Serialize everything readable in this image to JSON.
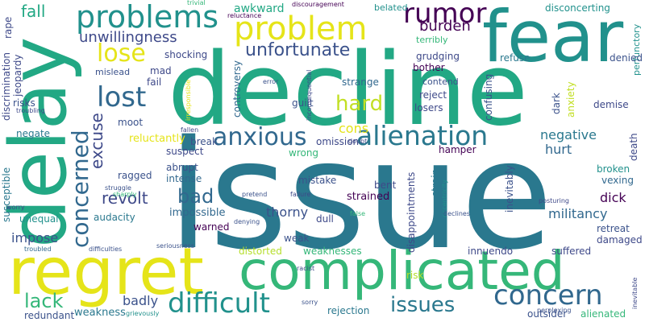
{
  "cloud": {
    "words": [
      {
        "text": "issue",
        "color": "#2a788e"
      },
      {
        "text": "decline",
        "color": "#22a884"
      },
      {
        "text": "fear",
        "color": "#21918c"
      },
      {
        "text": "delay",
        "color": "#22a884"
      },
      {
        "text": "regret",
        "color": "#e5e419"
      },
      {
        "text": "complicated",
        "color": "#35b779"
      },
      {
        "text": "problems",
        "color": "#21918c"
      },
      {
        "text": "problem",
        "color": "#e5e419"
      },
      {
        "text": "rumor",
        "color": "#440154"
      },
      {
        "text": "concern",
        "color": "#31688e"
      },
      {
        "text": "difficult",
        "color": "#21918c"
      },
      {
        "text": "alienation",
        "color": "#2a788e"
      },
      {
        "text": "concerned",
        "color": "#31688e"
      },
      {
        "text": "lost",
        "color": "#31688e"
      },
      {
        "text": "anxious",
        "color": "#31688e"
      },
      {
        "text": "hard",
        "color": "#c2df23"
      },
      {
        "text": "lose",
        "color": "#e5e419"
      },
      {
        "text": "unfortunate",
        "color": "#3b528b"
      },
      {
        "text": "unwillingness",
        "color": "#3e4989"
      },
      {
        "text": "issues",
        "color": "#2a788e"
      },
      {
        "text": "lack",
        "color": "#35b779"
      },
      {
        "text": "bad",
        "color": "#31688e"
      },
      {
        "text": "excuse",
        "color": "#3e4989"
      },
      {
        "text": "fall",
        "color": "#22a884"
      },
      {
        "text": "revolt",
        "color": "#3e4989"
      },
      {
        "text": "burden",
        "color": "#440154"
      },
      {
        "text": "cons",
        "color": "#e5e419"
      },
      {
        "text": "negative",
        "color": "#2a788e"
      },
      {
        "text": "hurt",
        "color": "#31688e"
      },
      {
        "text": "thorny",
        "color": "#3b528b"
      },
      {
        "text": "militancy",
        "color": "#31688e"
      },
      {
        "text": "dick",
        "color": "#440154"
      },
      {
        "text": "impose",
        "color": "#3b528b"
      },
      {
        "text": "awkward",
        "color": "#22a884"
      },
      {
        "text": "badly",
        "color": "#3b528b"
      },
      {
        "text": "weakness",
        "color": "#2a788e"
      },
      {
        "text": "reluctantly",
        "color": "#e5e419"
      },
      {
        "text": "impossible",
        "color": "#31688e"
      },
      {
        "text": "strained",
        "color": "#440154"
      },
      {
        "text": "disconcerting",
        "color": "#21918c"
      },
      {
        "text": "perfunctory",
        "color": "#21918c"
      },
      {
        "text": "shocking",
        "color": "#3e4989"
      },
      {
        "text": "refuse",
        "color": "#2a788e"
      },
      {
        "text": "denied",
        "color": "#3b528b"
      },
      {
        "text": "grudging",
        "color": "#3e4989"
      },
      {
        "text": "bother",
        "color": "#440154"
      },
      {
        "text": "terribly",
        "color": "#35b779"
      },
      {
        "text": "belated",
        "color": "#21918c"
      },
      {
        "text": "mislead",
        "color": "#3b528b"
      },
      {
        "text": "mad",
        "color": "#3e4989"
      },
      {
        "text": "fail",
        "color": "#3e4989"
      },
      {
        "text": "moot",
        "color": "#3b528b"
      },
      {
        "text": "strange",
        "color": "#31688e"
      },
      {
        "text": "contend",
        "color": "#3b528b"
      },
      {
        "text": "reject",
        "color": "#3e4989"
      },
      {
        "text": "losers",
        "color": "#3e4989"
      },
      {
        "text": "confusing",
        "color": "#3b528b"
      },
      {
        "text": "dark",
        "color": "#3b528b"
      },
      {
        "text": "anxiety",
        "color": "#c2df23"
      },
      {
        "text": "demise",
        "color": "#3e4989"
      },
      {
        "text": "guilt",
        "color": "#3b528b"
      },
      {
        "text": "controversy",
        "color": "#31688e"
      },
      {
        "text": "risks",
        "color": "#3b528b"
      },
      {
        "text": "negate",
        "color": "#2a788e"
      },
      {
        "text": "suspect",
        "color": "#3e4989"
      },
      {
        "text": "break",
        "color": "#3b528b"
      },
      {
        "text": "omission",
        "color": "#3e4989"
      },
      {
        "text": "wrong",
        "color": "#35b779"
      },
      {
        "text": "hamper",
        "color": "#440154"
      },
      {
        "text": "death",
        "color": "#3e4989"
      },
      {
        "text": "abrupt",
        "color": "#3b528b"
      },
      {
        "text": "intense",
        "color": "#31688e"
      },
      {
        "text": "ragged",
        "color": "#3b528b"
      },
      {
        "text": "mistake",
        "color": "#3b528b"
      },
      {
        "text": "bent",
        "color": "#3e4989"
      },
      {
        "text": "broken",
        "color": "#21918c"
      },
      {
        "text": "vexing",
        "color": "#31688e"
      },
      {
        "text": "inevitably",
        "color": "#3b528b"
      },
      {
        "text": "strain",
        "color": "#2a788e"
      },
      {
        "text": "disappointments",
        "color": "#3e4989"
      },
      {
        "text": "dull",
        "color": "#3e4989"
      },
      {
        "text": "weak",
        "color": "#3b528b"
      },
      {
        "text": "warned",
        "color": "#440154"
      },
      {
        "text": "audacity",
        "color": "#2a788e"
      },
      {
        "text": "unequal",
        "color": "#21918c"
      },
      {
        "text": "susceptible",
        "color": "#2a788e"
      },
      {
        "text": "distorted",
        "color": "#b5de2b"
      },
      {
        "text": "weaknesses",
        "color": "#35b779"
      },
      {
        "text": "innuendo",
        "color": "#3e4989"
      },
      {
        "text": "suffered",
        "color": "#3e4989"
      },
      {
        "text": "retreat",
        "color": "#3b528b"
      },
      {
        "text": "damaged",
        "color": "#3e4989"
      },
      {
        "text": "risk",
        "color": "#b5de2b"
      },
      {
        "text": "rejection",
        "color": "#2a788e"
      },
      {
        "text": "outsider",
        "color": "#3b528b"
      },
      {
        "text": "alienated",
        "color": "#35b779"
      },
      {
        "text": "redundant",
        "color": "#3b528b"
      },
      {
        "text": "discrimination",
        "color": "#3e4989"
      },
      {
        "text": "jeopardy",
        "color": "#3e4989"
      },
      {
        "text": "rape",
        "color": "#3e4989"
      },
      {
        "text": "troubling",
        "color": "#3e4989"
      },
      {
        "text": "trivial",
        "color": "#35b779"
      },
      {
        "text": "reluctance",
        "color": "#440154"
      },
      {
        "text": "discouragement",
        "color": "#440154"
      },
      {
        "text": "error",
        "color": "#3b528b"
      },
      {
        "text": "inconsequential",
        "color": "#3e4989"
      },
      {
        "text": "irresponsible",
        "color": "#e5e419"
      },
      {
        "text": "fallen",
        "color": "#3e4989"
      },
      {
        "text": "doubt",
        "color": "#3e4989"
      },
      {
        "text": "struggle",
        "color": "#3b528b"
      },
      {
        "text": "sharply",
        "color": "#35b779"
      },
      {
        "text": "worry",
        "color": "#3e4989"
      },
      {
        "text": "pretend",
        "color": "#3b528b"
      },
      {
        "text": "failure",
        "color": "#3e4989"
      },
      {
        "text": "eccentricity",
        "color": "#21918c"
      },
      {
        "text": "posturing",
        "color": "#3e4989"
      },
      {
        "text": "denying",
        "color": "#3b528b"
      },
      {
        "text": "false",
        "color": "#35b779"
      },
      {
        "text": "declines",
        "color": "#3b528b"
      },
      {
        "text": "troubled",
        "color": "#31688e"
      },
      {
        "text": "difficulties",
        "color": "#3b528b"
      },
      {
        "text": "seriousness",
        "color": "#3b528b"
      },
      {
        "text": "racist",
        "color": "#3e4989"
      },
      {
        "text": "sorry",
        "color": "#3b528b"
      },
      {
        "text": "grievously",
        "color": "#21918c"
      },
      {
        "text": "perplexing",
        "color": "#3b528b"
      },
      {
        "text": "inevitable",
        "color": "#3e4989"
      }
    ]
  }
}
